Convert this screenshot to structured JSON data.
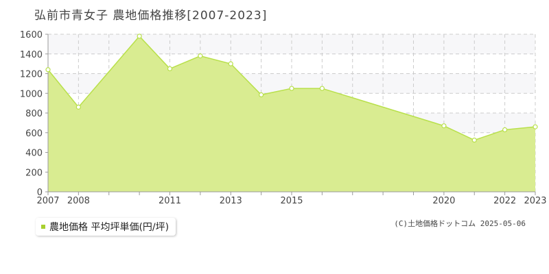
{
  "title": "弘前市青女子 農地価格推移[2007-2023]",
  "legend_label": "農地価格 平均坪単価(円/坪)",
  "credit": "(C)土地価格ドットコム 2025-05-06",
  "colors": {
    "line": "#b8e04a",
    "fill": "#d9ec91",
    "band": "#f7f7f9",
    "grid": "#cccccc",
    "axis": "#999999",
    "swatch": "#a8d030"
  },
  "chart_data": {
    "type": "area",
    "title": "弘前市青女子 農地価格推移[2007-2023]",
    "x": [
      2007,
      2008,
      2010,
      2011,
      2012,
      2013,
      2014,
      2015,
      2016,
      2020,
      2021,
      2022,
      2023
    ],
    "xticks": [
      2007,
      2008,
      2011,
      2013,
      2015,
      2020,
      2022,
      2023
    ],
    "xrange": [
      2007,
      2023
    ],
    "ylim": [
      0,
      1600
    ],
    "yticks": [
      0,
      200,
      400,
      600,
      800,
      1000,
      1200,
      1400,
      1600
    ],
    "grid": true,
    "series": [
      {
        "name": "農地価格 平均坪単価(円/坪)",
        "values": [
          1240,
          860,
          1580,
          1250,
          1380,
          1300,
          985,
          1050,
          1050,
          670,
          525,
          630,
          660
        ]
      }
    ]
  }
}
